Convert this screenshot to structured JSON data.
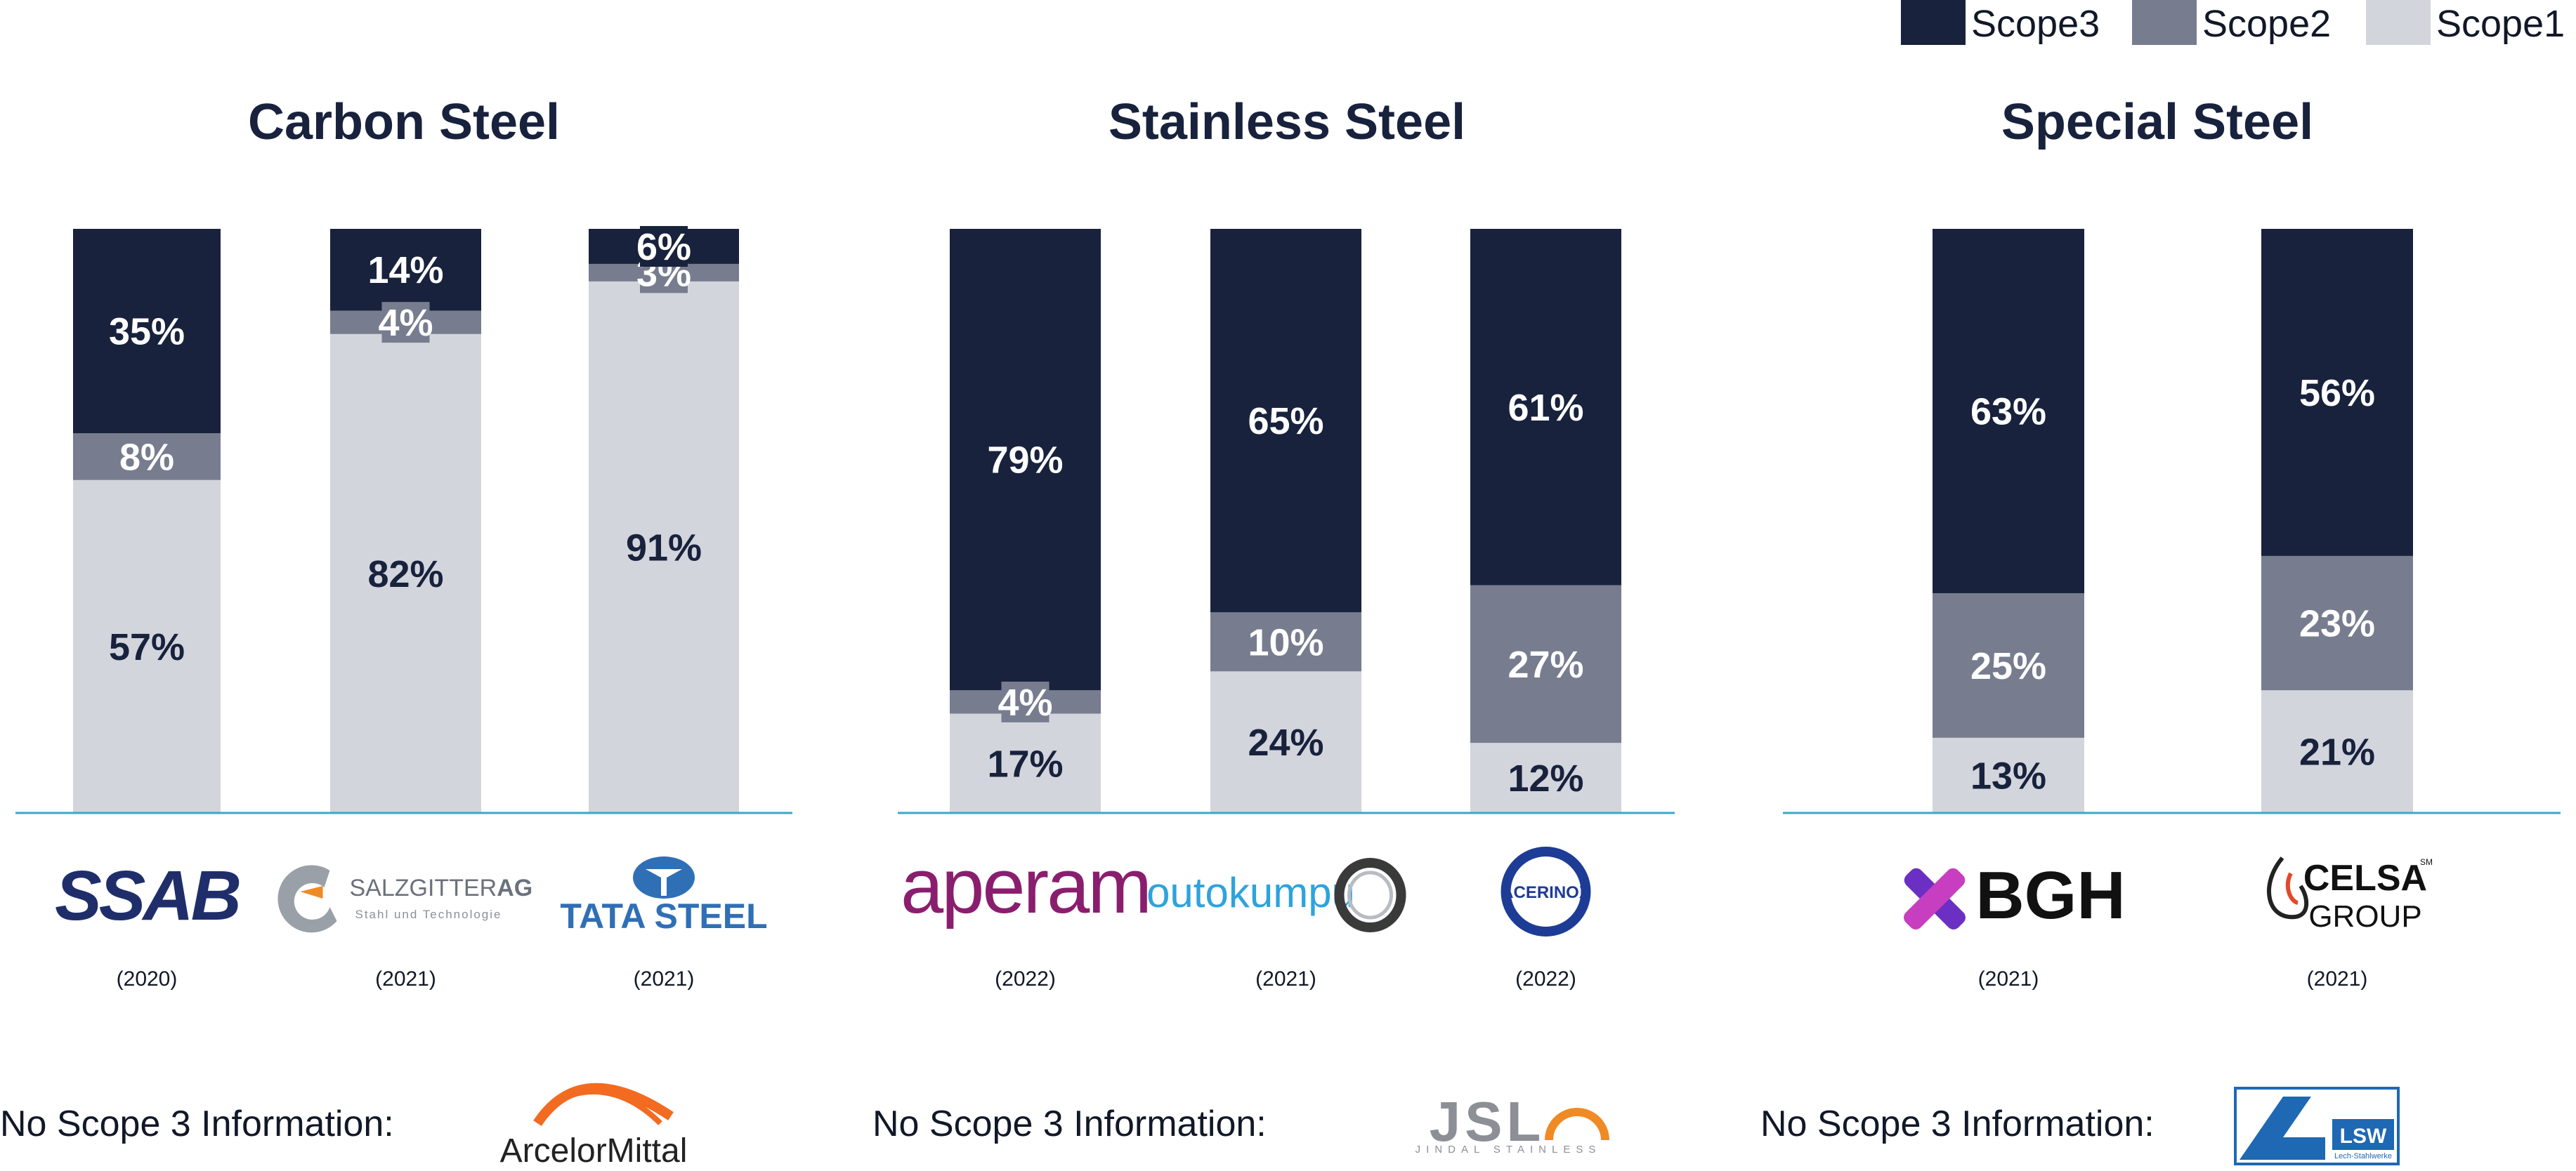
{
  "colors": {
    "scope3": "#18223d",
    "scope2": "#777d8f",
    "scope1": "#d3d5dc",
    "baseline": "#3aa7c9"
  },
  "legend": [
    {
      "key": "scope3",
      "label": "Scope3"
    },
    {
      "key": "scope2",
      "label": "Scope2"
    },
    {
      "key": "scope1",
      "label": "Scope1"
    }
  ],
  "chart_data": [
    {
      "type": "bar",
      "stacked": true,
      "normalized": true,
      "title": "Carbon Steel",
      "categories": [
        "SSAB (2020)",
        "Salzgitter AG (2021)",
        "Tata Steel (2021)"
      ],
      "series": [
        {
          "name": "Scope1",
          "values": [
            57,
            82,
            91
          ]
        },
        {
          "name": "Scope2",
          "values": [
            8,
            4,
            3
          ]
        },
        {
          "name": "Scope3",
          "values": [
            35,
            14,
            6
          ]
        }
      ],
      "ylim": [
        0,
        100
      ]
    },
    {
      "type": "bar",
      "stacked": true,
      "normalized": true,
      "title": "Stainless Steel",
      "categories": [
        "Aperam (2022)",
        "Outokumpu (2021)",
        "Acerinox (2022)"
      ],
      "series": [
        {
          "name": "Scope1",
          "values": [
            17,
            24,
            12
          ]
        },
        {
          "name": "Scope2",
          "values": [
            4,
            10,
            27
          ]
        },
        {
          "name": "Scope3",
          "values": [
            79,
            65,
            61
          ]
        }
      ],
      "ylim": [
        0,
        100
      ]
    },
    {
      "type": "bar",
      "stacked": true,
      "normalized": true,
      "title": "Special Steel",
      "categories": [
        "BGH (2021)",
        "Celsa Group (2021)"
      ],
      "series": [
        {
          "name": "Scope1",
          "values": [
            13,
            21
          ]
        },
        {
          "name": "Scope2",
          "values": [
            25,
            23
          ]
        },
        {
          "name": "Scope3",
          "values": [
            63,
            56
          ]
        }
      ],
      "ylim": [
        0,
        100
      ]
    }
  ],
  "companies": [
    [
      {
        "logo": "ssab-logo",
        "logo_text": "SSAB",
        "year": "(2020)"
      },
      {
        "logo": "salzgitter-logo",
        "logo_text": "SALZGITTER",
        "logo_text_bold": "AG",
        "logo_sub": "Stahl und Technologie",
        "year": "(2021)"
      },
      {
        "logo": "tata-steel-logo",
        "logo_text": "TATA STEEL",
        "year": "(2021)"
      }
    ],
    [
      {
        "logo": "aperam-logo",
        "logo_text": "aperam",
        "year": "(2022)"
      },
      {
        "logo": "outokumpu-logo",
        "logo_text": "outokumpu",
        "year": "(2021)"
      },
      {
        "logo": "acerinox-logo",
        "logo_text": "ACERINOX",
        "year": "(2022)"
      }
    ],
    [
      {
        "logo": "bgh-logo",
        "logo_text": "BGH",
        "year": "(2021)"
      },
      {
        "logo": "celsa-logo",
        "logo_text": "CELSA",
        "logo_sub": "GROUP",
        "logo_mark": "SM",
        "year": "(2021)"
      }
    ]
  ],
  "no_scope3": [
    {
      "label": "No Scope 3 Information:",
      "logo": "arcelormittal-logo",
      "logo_text": "ArcelorMittal"
    },
    {
      "label": "No Scope 3 Information:",
      "logo": "jsl-logo",
      "logo_text": "JSL",
      "logo_sub": "JINDAL STAINLESS"
    },
    {
      "label": "No Scope 3 Information:",
      "logo": "lsw-logo",
      "logo_text": "LSW",
      "logo_sub": "Lech-Stahlwerke"
    }
  ]
}
